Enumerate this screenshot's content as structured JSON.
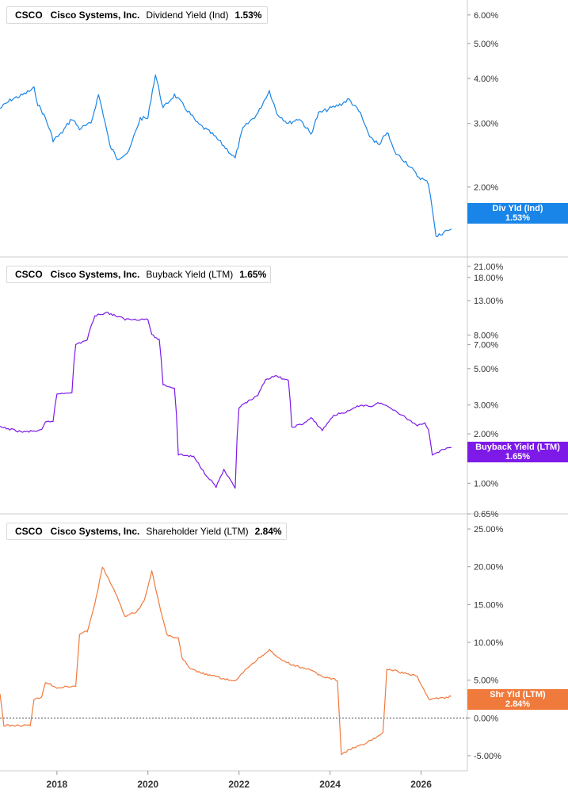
{
  "colors": {
    "div": "#1a85e8",
    "buy": "#7d1ae8",
    "shr": "#f07a3c",
    "grid": "#cccccc"
  },
  "panels": [
    {
      "ticker": "CSCO",
      "company": "Cisco Systems, Inc.",
      "metric": "Dividend Yield (Ind)",
      "value": "1.53%",
      "tag_line1": "Div Yld (Ind)",
      "tag_line2": "1.53%"
    },
    {
      "ticker": "CSCO",
      "company": "Cisco Systems, Inc.",
      "metric": "Buyback Yield (LTM)",
      "value": "1.65%",
      "tag_line1": "Buyback Yield (LTM)",
      "tag_line2": "1.65%"
    },
    {
      "ticker": "CSCO",
      "company": "Cisco Systems, Inc.",
      "metric": "Shareholder Yield (LTM)",
      "value": "2.84%",
      "tag_line1": "Shr Yld (LTM)",
      "tag_line2": "2.84%"
    }
  ],
  "x_ticks": [
    "2018",
    "2020",
    "2022",
    "2024",
    "2026"
  ],
  "chart_data": [
    {
      "type": "line",
      "scale": "log",
      "title": "CSCO Cisco Systems, Inc. Dividend Yield (Ind) 1.53%",
      "series": [
        {
          "name": "Dividend Yield (Ind)",
          "values": [
            [
              "2016-10-01",
              3.3
            ],
            [
              "2017-01-01",
              3.5
            ],
            [
              "2017-04-01",
              3.6
            ],
            [
              "2017-07-01",
              3.75
            ],
            [
              "2017-08-01",
              3.4
            ],
            [
              "2017-10-01",
              3.1
            ],
            [
              "2017-12-01",
              2.7
            ],
            [
              "2018-02-01",
              2.8
            ],
            [
              "2018-05-01",
              3.1
            ],
            [
              "2018-07-01",
              2.9
            ],
            [
              "2018-10-01",
              3.0
            ],
            [
              "2018-12-01",
              3.6
            ],
            [
              "2019-03-01",
              2.6
            ],
            [
              "2019-05-01",
              2.4
            ],
            [
              "2019-08-01",
              2.5
            ],
            [
              "2019-11-01",
              3.1
            ],
            [
              "2020-01-01",
              3.1
            ],
            [
              "2020-03-01",
              4.1
            ],
            [
              "2020-05-01",
              3.3
            ],
            [
              "2020-08-01",
              3.6
            ],
            [
              "2020-11-01",
              3.3
            ],
            [
              "2021-02-01",
              3.0
            ],
            [
              "2021-06-01",
              2.8
            ],
            [
              "2021-09-01",
              2.6
            ],
            [
              "2021-12-01",
              2.4
            ],
            [
              "2022-02-01",
              2.9
            ],
            [
              "2022-06-01",
              3.2
            ],
            [
              "2022-09-01",
              3.7
            ],
            [
              "2022-11-01",
              3.2
            ],
            [
              "2023-02-01",
              3.0
            ],
            [
              "2023-05-01",
              3.1
            ],
            [
              "2023-08-01",
              2.8
            ],
            [
              "2023-10-01",
              3.2
            ],
            [
              "2024-01-01",
              3.3
            ],
            [
              "2024-04-01",
              3.4
            ],
            [
              "2024-06-01",
              3.5
            ],
            [
              "2024-09-01",
              3.2
            ],
            [
              "2024-11-01",
              2.8
            ],
            [
              "2025-02-01",
              2.6
            ],
            [
              "2025-04-01",
              2.85
            ],
            [
              "2025-06-01",
              2.5
            ],
            [
              "2025-09-01",
              2.35
            ],
            [
              "2025-12-01",
              2.15
            ],
            [
              "2026-03-01",
              2.05
            ],
            [
              "2026-04-01",
              1.75
            ],
            [
              "2026-05-01",
              1.45
            ],
            [
              "2026-07-01",
              1.5
            ],
            [
              "2026-09-01",
              1.53
            ]
          ]
        }
      ],
      "y_ticks": [
        "2.00%",
        "3.00%",
        "4.00%",
        "5.00%",
        "6.00%"
      ],
      "y_tick_values": [
        2,
        3,
        4,
        5,
        6
      ],
      "ylim": [
        1.28,
        6.6
      ]
    },
    {
      "type": "line",
      "scale": "log",
      "title": "CSCO Cisco Systems, Inc. Buyback Yield (LTM) 1.65%",
      "series": [
        {
          "name": "Buyback Yield (LTM)",
          "values": [
            [
              "2016-10-01",
              2.2
            ],
            [
              "2017-04-01",
              2.05
            ],
            [
              "2017-09-01",
              2.1
            ],
            [
              "2017-10-01",
              2.35
            ],
            [
              "2017-12-01",
              2.4
            ],
            [
              "2018-01-01",
              3.5
            ],
            [
              "2018-05-01",
              3.6
            ],
            [
              "2018-06-01",
              7.0
            ],
            [
              "2018-09-01",
              7.5
            ],
            [
              "2018-11-01",
              10.5
            ],
            [
              "2019-02-01",
              11.0
            ],
            [
              "2019-07-01",
              10.0
            ],
            [
              "2020-01-01",
              10.0
            ],
            [
              "2020-02-01",
              8.0
            ],
            [
              "2020-04-01",
              7.5
            ],
            [
              "2020-05-01",
              4.0
            ],
            [
              "2020-08-01",
              3.8
            ],
            [
              "2020-09-01",
              1.5
            ],
            [
              "2021-01-01",
              1.45
            ],
            [
              "2021-04-01",
              1.15
            ],
            [
              "2021-07-01",
              0.95
            ],
            [
              "2021-09-01",
              1.2
            ],
            [
              "2021-12-01",
              0.92
            ],
            [
              "2022-01-01",
              2.9
            ],
            [
              "2022-06-01",
              3.4
            ],
            [
              "2022-08-01",
              4.3
            ],
            [
              "2022-11-01",
              4.5
            ],
            [
              "2023-02-01",
              4.2
            ],
            [
              "2023-03-01",
              2.2
            ],
            [
              "2023-06-01",
              2.3
            ],
            [
              "2023-08-01",
              2.5
            ],
            [
              "2023-11-01",
              2.1
            ],
            [
              "2024-02-01",
              2.6
            ],
            [
              "2024-06-01",
              2.75
            ],
            [
              "2024-09-01",
              3.0
            ],
            [
              "2024-12-01",
              2.95
            ],
            [
              "2025-02-01",
              3.1
            ],
            [
              "2025-06-01",
              2.8
            ],
            [
              "2025-09-01",
              2.5
            ],
            [
              "2025-12-01",
              2.25
            ],
            [
              "2026-02-01",
              2.35
            ],
            [
              "2026-03-01",
              2.1
            ],
            [
              "2026-04-01",
              1.5
            ],
            [
              "2026-07-01",
              1.6
            ],
            [
              "2026-09-01",
              1.65
            ]
          ]
        }
      ],
      "y_ticks": [
        "0.65%",
        "1.00%",
        "2.00%",
        "3.00%",
        "5.00%",
        "7.00%",
        "8.00%",
        "13.00%",
        "18.00%",
        "21.00%"
      ],
      "y_tick_values": [
        0.65,
        1,
        2,
        3,
        5,
        7,
        8,
        13,
        18,
        21
      ],
      "ylim": [
        0.65,
        24
      ]
    },
    {
      "type": "line",
      "scale": "linear",
      "title": "CSCO Cisco Systems, Inc. Shareholder Yield (LTM) 2.84%",
      "series": [
        {
          "name": "Shareholder Yield (LTM)",
          "values": [
            [
              "2016-10-01",
              3.2
            ],
            [
              "2016-11-01",
              -1.0
            ],
            [
              "2017-06-01",
              -1.0
            ],
            [
              "2017-07-01",
              2.5
            ],
            [
              "2017-09-01",
              2.7
            ],
            [
              "2017-10-01",
              4.8
            ],
            [
              "2018-01-01",
              4.0
            ],
            [
              "2018-06-01",
              4.2
            ],
            [
              "2018-07-01",
              11.0
            ],
            [
              "2018-09-01",
              11.5
            ],
            [
              "2018-11-01",
              15.0
            ],
            [
              "2019-01-01",
              20.0
            ],
            [
              "2019-04-01",
              17.0
            ],
            [
              "2019-07-01",
              13.5
            ],
            [
              "2019-10-01",
              14.0
            ],
            [
              "2019-12-01",
              15.5
            ],
            [
              "2020-02-01",
              19.5
            ],
            [
              "2020-04-01",
              15.0
            ],
            [
              "2020-06-01",
              11.0
            ],
            [
              "2020-09-01",
              10.5
            ],
            [
              "2020-10-01",
              8.0
            ],
            [
              "2020-12-01",
              6.5
            ],
            [
              "2021-04-01",
              5.8
            ],
            [
              "2021-09-01",
              5.2
            ],
            [
              "2021-12-01",
              4.8
            ],
            [
              "2022-03-01",
              6.5
            ],
            [
              "2022-07-01",
              8.2
            ],
            [
              "2022-09-01",
              9.0
            ],
            [
              "2022-11-01",
              8.0
            ],
            [
              "2023-03-01",
              7.0
            ],
            [
              "2023-07-01",
              6.5
            ],
            [
              "2023-11-01",
              5.5
            ],
            [
              "2024-03-01",
              5.0
            ],
            [
              "2024-04-01",
              -4.8
            ],
            [
              "2024-07-01",
              -4.0
            ],
            [
              "2024-10-01",
              -3.5
            ],
            [
              "2025-03-01",
              -2.0
            ],
            [
              "2025-04-01",
              6.5
            ],
            [
              "2025-08-01",
              6.0
            ],
            [
              "2025-12-01",
              5.5
            ],
            [
              "2026-01-01",
              4.5
            ],
            [
              "2026-03-01",
              2.5
            ],
            [
              "2026-06-01",
              2.6
            ],
            [
              "2026-09-01",
              2.84
            ]
          ]
        }
      ],
      "y_ticks": [
        "-5.00%",
        "0.00%",
        "5.00%",
        "10.00%",
        "15.00%",
        "20.00%",
        "25.00%"
      ],
      "y_tick_values": [
        -5,
        0,
        5,
        10,
        15,
        20,
        25
      ],
      "ylim": [
        -7.0,
        27.0
      ]
    }
  ]
}
